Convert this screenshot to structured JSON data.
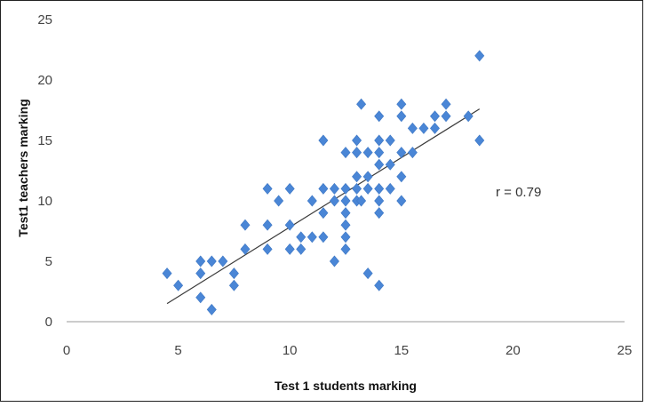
{
  "chart_data": {
    "type": "scatter",
    "xlabel": "Test 1  students marking",
    "ylabel": "Test1 teachers marking",
    "xlim": [
      0,
      25
    ],
    "ylim": [
      0,
      25
    ],
    "xticks": [
      "0",
      "5",
      "10",
      "15",
      "20",
      "25"
    ],
    "yticks": [
      "0",
      "5",
      "10",
      "15",
      "20",
      "25"
    ],
    "grid": false,
    "annotation": "r = 0.79",
    "marker_color": "#4a86d6",
    "trendline": {
      "x": [
        4.5,
        18.5
      ],
      "y": [
        1.5,
        17.6
      ]
    },
    "points": [
      [
        4.5,
        4
      ],
      [
        5,
        3
      ],
      [
        6,
        5
      ],
      [
        6,
        4
      ],
      [
        6,
        2
      ],
      [
        6.5,
        5
      ],
      [
        6.5,
        1
      ],
      [
        7,
        5
      ],
      [
        7.5,
        4
      ],
      [
        7.5,
        3
      ],
      [
        8,
        8
      ],
      [
        8,
        6
      ],
      [
        9,
        11
      ],
      [
        9,
        8
      ],
      [
        9,
        6
      ],
      [
        9.5,
        10
      ],
      [
        10,
        11
      ],
      [
        10,
        8
      ],
      [
        10,
        6
      ],
      [
        10.5,
        7
      ],
      [
        10.5,
        6
      ],
      [
        11,
        10
      ],
      [
        11,
        7
      ],
      [
        11.5,
        15
      ],
      [
        11.5,
        11
      ],
      [
        11.5,
        9
      ],
      [
        11.5,
        7
      ],
      [
        12,
        11
      ],
      [
        12,
        10
      ],
      [
        12,
        5
      ],
      [
        12.5,
        14
      ],
      [
        12.5,
        11
      ],
      [
        12.5,
        10
      ],
      [
        12.5,
        9
      ],
      [
        12.5,
        8
      ],
      [
        12.5,
        7
      ],
      [
        12.5,
        6
      ],
      [
        13,
        15
      ],
      [
        13,
        14
      ],
      [
        13,
        12
      ],
      [
        13,
        11
      ],
      [
        13,
        10
      ],
      [
        13.2,
        18
      ],
      [
        13.2,
        10
      ],
      [
        13.5,
        14
      ],
      [
        13.5,
        12
      ],
      [
        13.5,
        11
      ],
      [
        13.5,
        4
      ],
      [
        14,
        17
      ],
      [
        14,
        15
      ],
      [
        14,
        14
      ],
      [
        14,
        13
      ],
      [
        14,
        11
      ],
      [
        14,
        10
      ],
      [
        14,
        9
      ],
      [
        14,
        3
      ],
      [
        14.5,
        15
      ],
      [
        14.5,
        13
      ],
      [
        14.5,
        11
      ],
      [
        15,
        18
      ],
      [
        15,
        17
      ],
      [
        15,
        14
      ],
      [
        15,
        12
      ],
      [
        15,
        10
      ],
      [
        15.5,
        16
      ],
      [
        15.5,
        14
      ],
      [
        16,
        16
      ],
      [
        16.5,
        17
      ],
      [
        16.5,
        16
      ],
      [
        17,
        18
      ],
      [
        17,
        17
      ],
      [
        18,
        17
      ],
      [
        18.5,
        22
      ],
      [
        18.5,
        15
      ]
    ]
  }
}
